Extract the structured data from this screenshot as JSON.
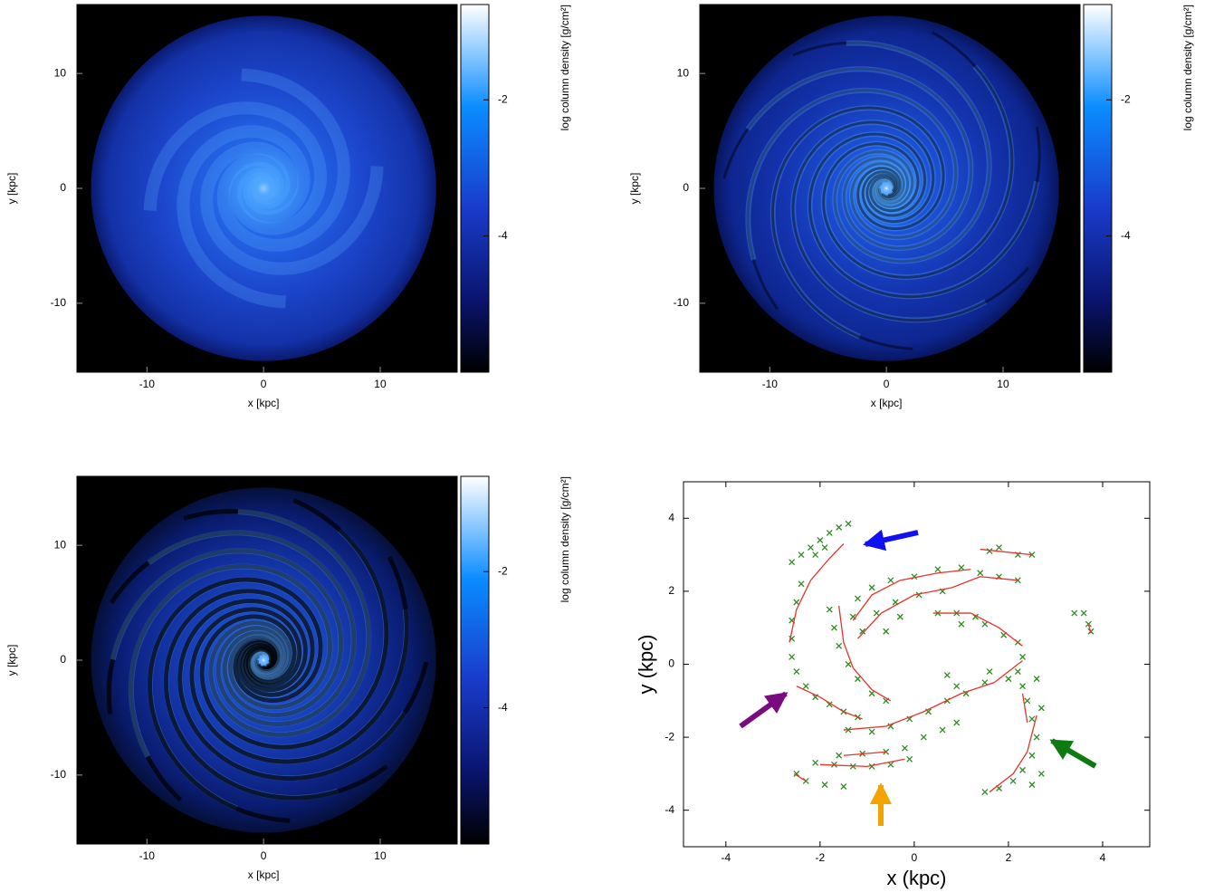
{
  "chart_data": [
    {
      "type": "image",
      "xlabel": "x [kpc]",
      "ylabel": "y [kpc]",
      "colorbar_label": "log column density [g/cm²]",
      "xlim": [
        -16,
        16.6
      ],
      "ylim": [
        -16,
        16
      ],
      "xticks": [
        -10,
        0,
        10
      ],
      "yticks": [
        -10,
        0,
        10
      ],
      "clim": [
        -6,
        -0.6
      ],
      "cticks": [
        -2,
        -4
      ]
    },
    {
      "type": "image",
      "xlabel": "x [kpc]",
      "ylabel": "y [kpc]",
      "colorbar_label": "log column density [g/cm²]",
      "xlim": [
        -16,
        16.6
      ],
      "ylim": [
        -16,
        16
      ],
      "xticks": [
        -10,
        0,
        10
      ],
      "yticks": [
        -10,
        0,
        10
      ],
      "clim": [
        -6,
        -0.6
      ],
      "cticks": [
        -2,
        -4
      ]
    },
    {
      "type": "image",
      "xlabel": "x [kpc]",
      "ylabel": "y [kpc]",
      "colorbar_label": "log column density [g/cm²]",
      "xlim": [
        -16,
        16.6
      ],
      "ylim": [
        -16,
        16
      ],
      "xticks": [
        -10,
        0,
        10
      ],
      "yticks": [
        -10,
        0,
        10
      ],
      "clim": [
        -6,
        -0.6
      ],
      "cticks": [
        -2,
        -4
      ]
    },
    {
      "type": "scatter",
      "xlabel": "x (kpc)",
      "ylabel": "y (kpc)",
      "xlim": [
        -4.9,
        5
      ],
      "ylim": [
        -5,
        5
      ],
      "xticks": [
        -4,
        -2,
        0,
        2,
        4
      ],
      "yticks": [
        -4,
        -2,
        0,
        2,
        4
      ],
      "series": [
        {
          "color": "#2e8b22",
          "marker": "x",
          "x": [
            -2.6,
            -2.4,
            -2.2,
            -2.0,
            -1.8,
            -1.6,
            -1.4,
            -2.1,
            -1.9,
            -2.4,
            -2.5,
            -2.6,
            -2.6,
            -2.6,
            -2.5,
            -2.3,
            -2.1,
            -1.8,
            -1.5,
            -1.2,
            -1.8,
            -1.7,
            -1.6,
            -1.4,
            -1.2,
            -0.9,
            -0.6,
            -1.3,
            -1.2,
            -0.9,
            -0.5,
            0.0,
            0.5,
            1.0,
            1.4,
            1.8,
            2.2,
            -1.1,
            -0.8,
            -0.4,
            0.1,
            0.6,
            -0.6,
            -0.3,
            0.5,
            0.9,
            1.3,
            1.0,
            1.5,
            1.9,
            2.2,
            1.8,
            1.6,
            2.2,
            2.5,
            3.4,
            3.6,
            3.7,
            3.75,
            -2.1,
            -1.7,
            -1.3,
            -0.9,
            -0.5,
            -0.1,
            -1.6,
            -1.1,
            -0.6,
            -0.2,
            -1.4,
            -0.9,
            -0.5,
            -0.1,
            0.3,
            0.7,
            1.1,
            1.5,
            2.0,
            2.2,
            2.3,
            0.2,
            0.6,
            0.9,
            0.7,
            0.9,
            1.6,
            -2.5,
            -2.3,
            -1.9,
            -1.5,
            2.3,
            2.4,
            2.5,
            2.6,
            2.5,
            2.3,
            2.1,
            1.8,
            1.5,
            2.5,
            2.7,
            2.6,
            2.7
          ],
          "y": [
            2.8,
            3.0,
            3.2,
            3.4,
            3.6,
            3.75,
            3.85,
            3.0,
            3.2,
            2.2,
            1.7,
            1.2,
            0.7,
            0.2,
            -0.2,
            -0.6,
            -0.9,
            -1.1,
            -1.3,
            -1.45,
            1.5,
            1.0,
            0.5,
            0.0,
            -0.4,
            -0.8,
            -1.0,
            1.3,
            1.8,
            2.1,
            2.3,
            2.4,
            2.6,
            2.65,
            2.5,
            2.4,
            2.3,
            0.9,
            1.4,
            1.7,
            1.9,
            2.0,
            0.9,
            1.3,
            1.4,
            1.4,
            1.3,
            1.1,
            1.1,
            0.8,
            0.6,
            3.2,
            3.1,
            3.0,
            3.0,
            1.4,
            1.4,
            1.1,
            0.9,
            -2.7,
            -2.75,
            -2.8,
            -2.8,
            -2.75,
            -2.6,
            -2.5,
            -2.45,
            -2.4,
            -2.3,
            -1.8,
            -1.85,
            -1.7,
            -1.5,
            -1.3,
            -1.0,
            -0.8,
            -0.5,
            -0.4,
            -0.2,
            0.2,
            -2.0,
            -1.8,
            -1.6,
            -0.3,
            -0.6,
            -0.2,
            -3.0,
            -3.2,
            -3.3,
            -3.35,
            -0.6,
            -1.0,
            -1.5,
            -2.0,
            -2.5,
            -2.9,
            -3.2,
            -3.4,
            -3.5,
            -3.3,
            -3.0,
            -0.4,
            -1.2
          ]
        }
      ],
      "line_color": "#e8332a",
      "lines": [
        {
          "x": [
            -2.65,
            -2.5,
            -2.2,
            -1.8,
            -1.5
          ],
          "y": [
            0.6,
            1.5,
            2.3,
            2.9,
            3.3
          ]
        },
        {
          "x": [
            -2.5,
            -2.0,
            -1.5,
            -1.1
          ],
          "y": [
            -0.6,
            -0.9,
            -1.3,
            -1.5
          ]
        },
        {
          "x": [
            -1.6,
            -1.5,
            -1.3,
            -0.9,
            -0.5
          ],
          "y": [
            1.6,
            0.6,
            -0.1,
            -0.7,
            -1.0
          ]
        },
        {
          "x": [
            -1.3,
            -0.9,
            -0.3,
            0.5,
            1.2
          ],
          "y": [
            1.2,
            1.9,
            2.3,
            2.5,
            2.6
          ]
        },
        {
          "x": [
            -1.2,
            -0.7,
            0.0,
            0.8,
            1.4,
            2.2
          ],
          "y": [
            0.7,
            1.4,
            1.9,
            2.1,
            2.4,
            2.3
          ]
        },
        {
          "x": [
            0.4,
            1.2,
            1.8,
            2.3
          ],
          "y": [
            1.4,
            1.4,
            1.0,
            0.5
          ]
        },
        {
          "x": [
            -1.5,
            -0.6,
            0.2,
            1.0,
            1.7,
            2.3
          ],
          "y": [
            -1.8,
            -1.7,
            -1.3,
            -0.8,
            -0.5,
            0.1
          ]
        },
        {
          "x": [
            -2.0,
            -1.0,
            -0.2
          ],
          "y": [
            -2.75,
            -2.8,
            -2.6
          ]
        },
        {
          "x": [
            -1.5,
            -0.6
          ],
          "y": [
            -2.5,
            -2.4
          ]
        },
        {
          "x": [
            2.6,
            2.4,
            2.1,
            1.6
          ],
          "y": [
            -1.4,
            -2.4,
            -3.0,
            -3.5
          ]
        },
        {
          "x": [
            2.3,
            2.4
          ],
          "y": [
            -0.8,
            -1.6
          ]
        },
        {
          "x": [
            1.4,
            2.5
          ],
          "y": [
            3.15,
            3.0
          ]
        },
        {
          "x": [
            3.7,
            3.75
          ],
          "y": [
            1.1,
            0.85
          ]
        },
        {
          "x": [
            -2.55,
            -2.3
          ],
          "y": [
            -3.0,
            -3.2
          ]
        }
      ]
    }
  ]
}
